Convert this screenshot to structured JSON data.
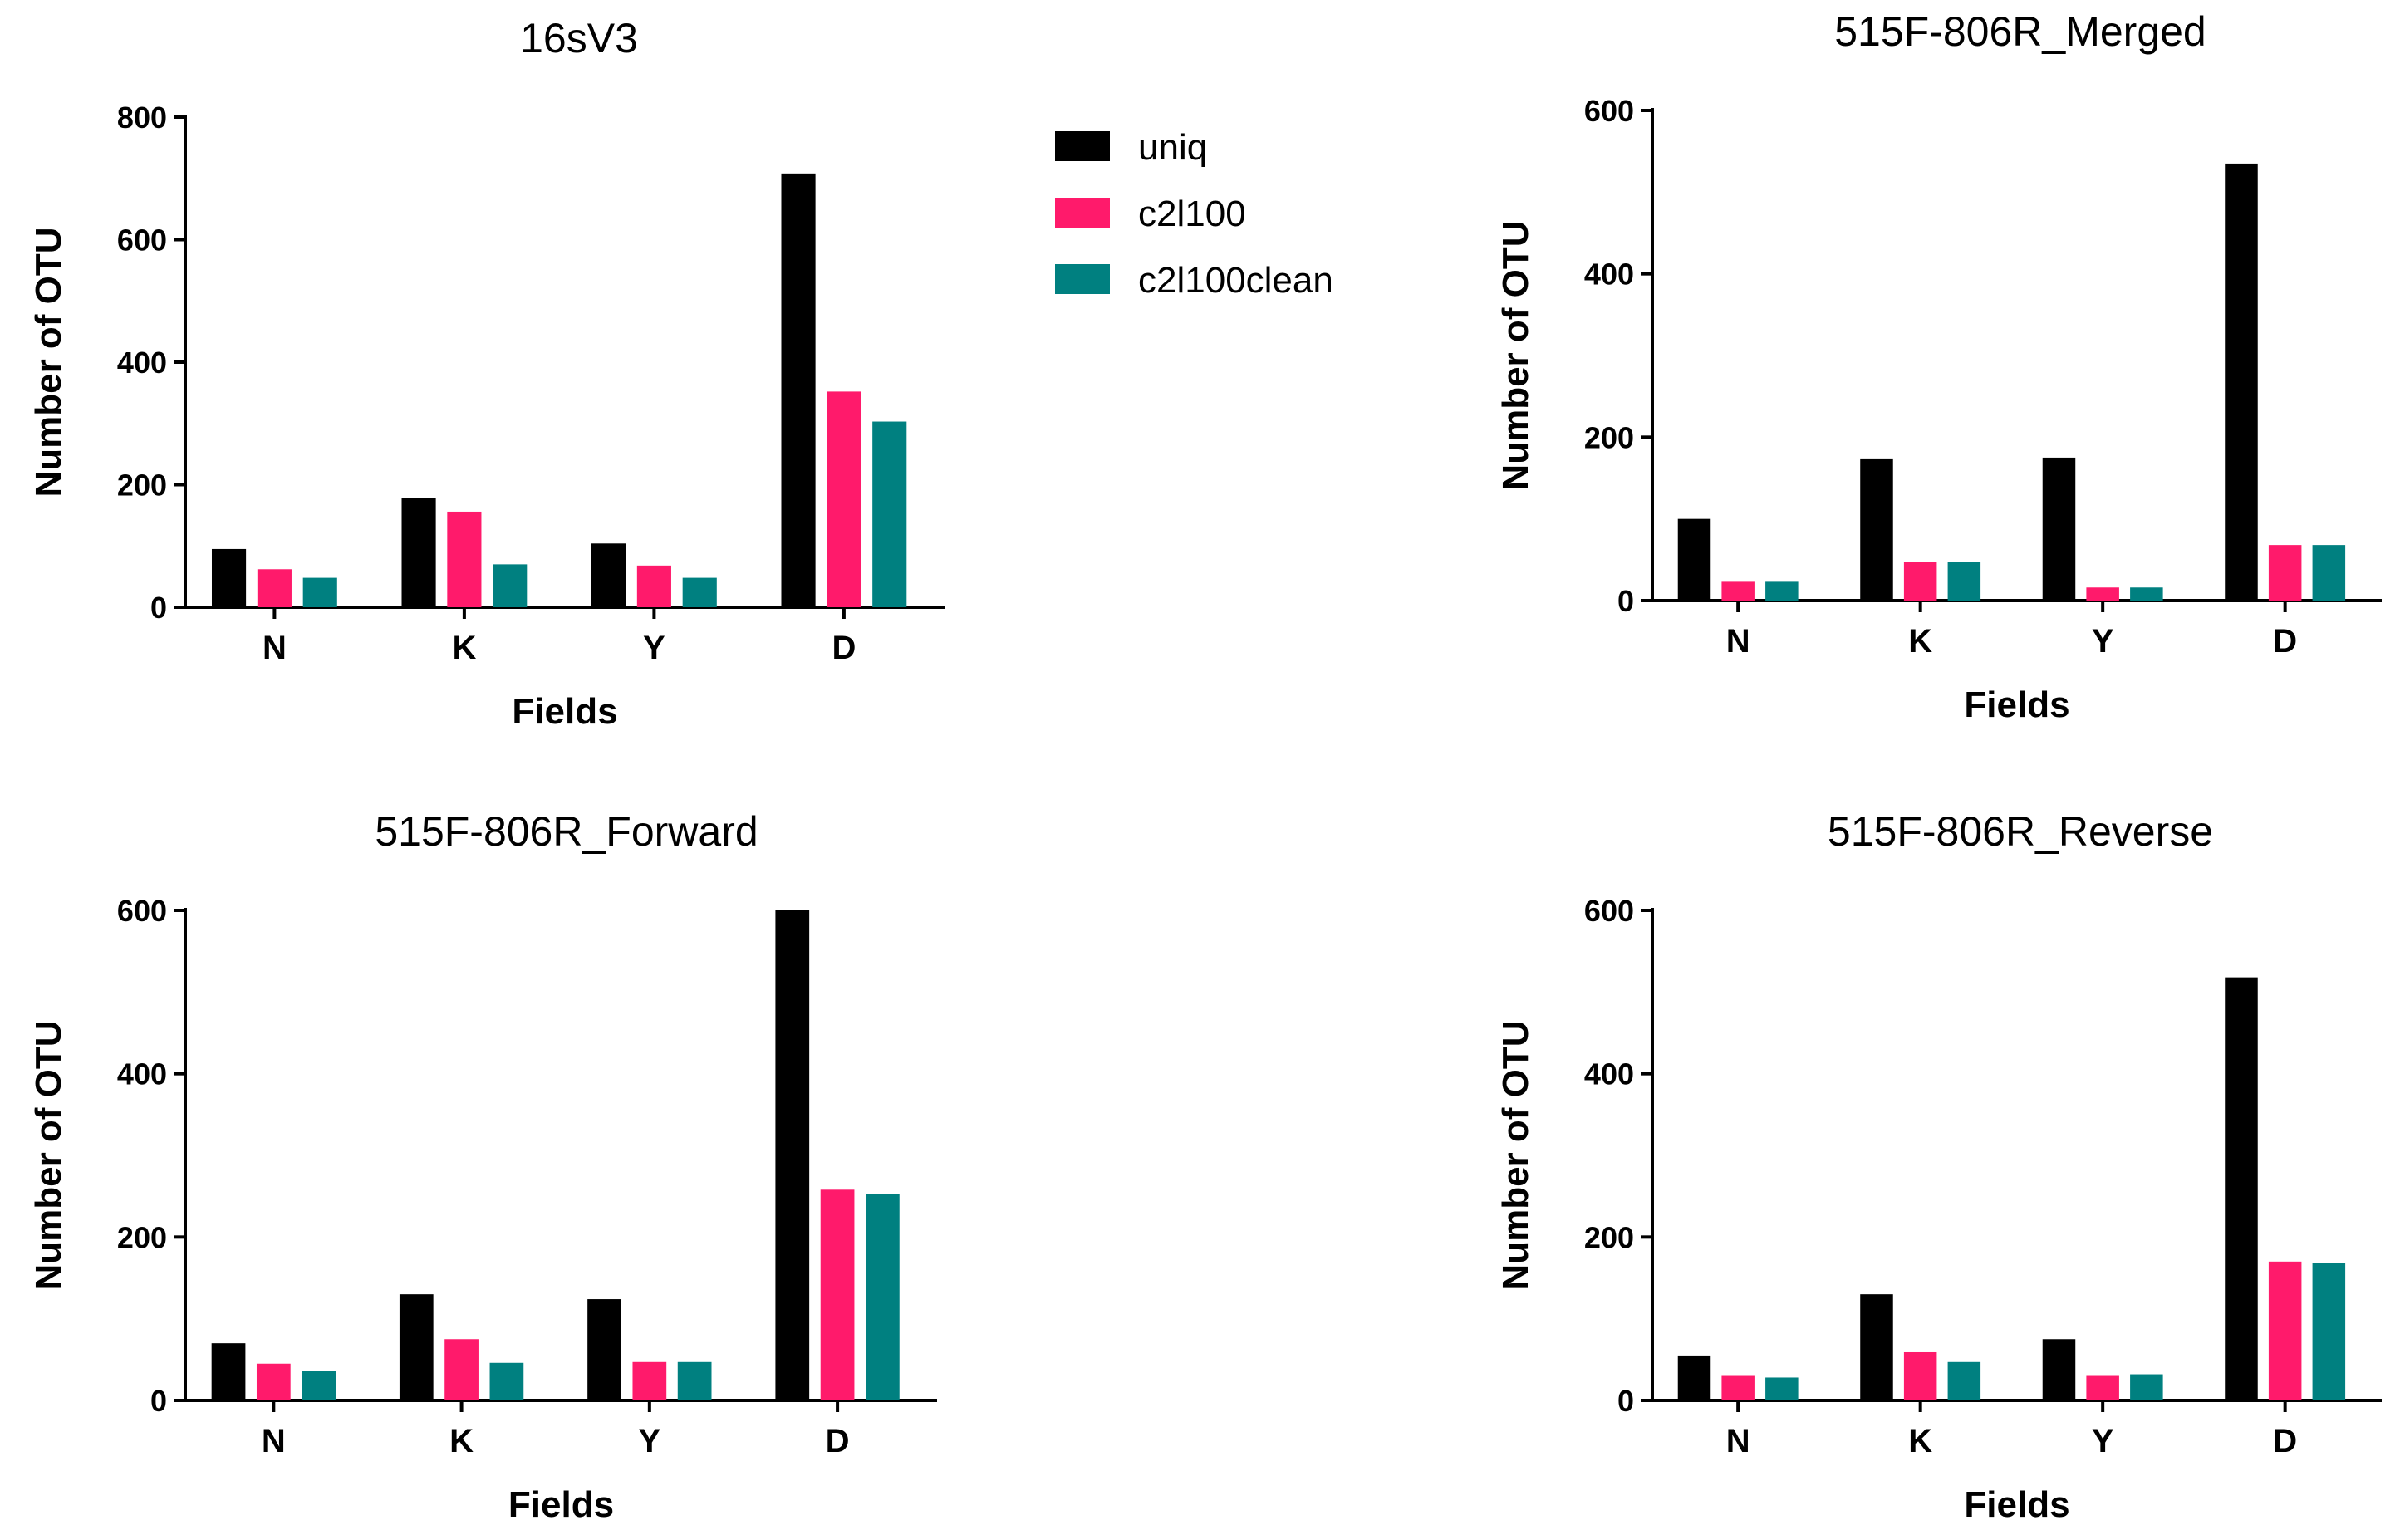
{
  "chart_data": [
    {
      "type": "bar",
      "title": "16sV3",
      "xlabel": "Fields",
      "ylabel": "Number of OTU",
      "categories": [
        "N",
        "K",
        "Y",
        "D"
      ],
      "ylim": [
        0,
        800
      ],
      "yticks": [
        0,
        200,
        400,
        600,
        800
      ],
      "series": [
        {
          "name": "uniq",
          "values": [
            95,
            178,
            104,
            708
          ]
        },
        {
          "name": "c2l100",
          "values": [
            62,
            156,
            68,
            352
          ]
        },
        {
          "name": "c2l100clean",
          "values": [
            48,
            70,
            48,
            303
          ]
        }
      ]
    },
    {
      "type": "bar",
      "title": "515F-806R_Merged",
      "xlabel": "Fields",
      "ylabel": "Number of OTU",
      "categories": [
        "N",
        "K",
        "Y",
        "D"
      ],
      "ylim": [
        0,
        600
      ],
      "yticks": [
        0,
        200,
        400,
        600
      ],
      "series": [
        {
          "name": "uniq",
          "values": [
            100,
            174,
            175,
            535
          ]
        },
        {
          "name": "c2l100",
          "values": [
            23,
            47,
            16,
            68
          ]
        },
        {
          "name": "c2l100clean",
          "values": [
            23,
            47,
            16,
            68
          ]
        }
      ]
    },
    {
      "type": "bar",
      "title": "515F-806R_Forward",
      "xlabel": "Fields",
      "ylabel": "Number of OTU",
      "categories": [
        "N",
        "K",
        "Y",
        "D"
      ],
      "ylim": [
        0,
        600
      ],
      "yticks": [
        0,
        200,
        400,
        600
      ],
      "series": [
        {
          "name": "uniq",
          "values": [
            70,
            130,
            124,
            600
          ]
        },
        {
          "name": "c2l100",
          "values": [
            45,
            75,
            47,
            258
          ]
        },
        {
          "name": "c2l100clean",
          "values": [
            36,
            46,
            47,
            253
          ]
        }
      ]
    },
    {
      "type": "bar",
      "title": "515F-806R_Reverse",
      "xlabel": "Fields",
      "ylabel": "Number of OTU",
      "categories": [
        "N",
        "K",
        "Y",
        "D"
      ],
      "ylim": [
        0,
        600
      ],
      "yticks": [
        0,
        200,
        400,
        600
      ],
      "series": [
        {
          "name": "uniq",
          "values": [
            55,
            130,
            75,
            518
          ]
        },
        {
          "name": "c2l100",
          "values": [
            31,
            59,
            31,
            170
          ]
        },
        {
          "name": "c2l100clean",
          "values": [
            28,
            47,
            32,
            168
          ]
        }
      ]
    }
  ],
  "legend": {
    "placement": "top-center",
    "items": [
      {
        "label": "uniq",
        "color": "#000000"
      },
      {
        "label": "c2l100",
        "color": "#ff1a6b"
      },
      {
        "label": "c2l100clean",
        "color": "#008080"
      }
    ]
  }
}
